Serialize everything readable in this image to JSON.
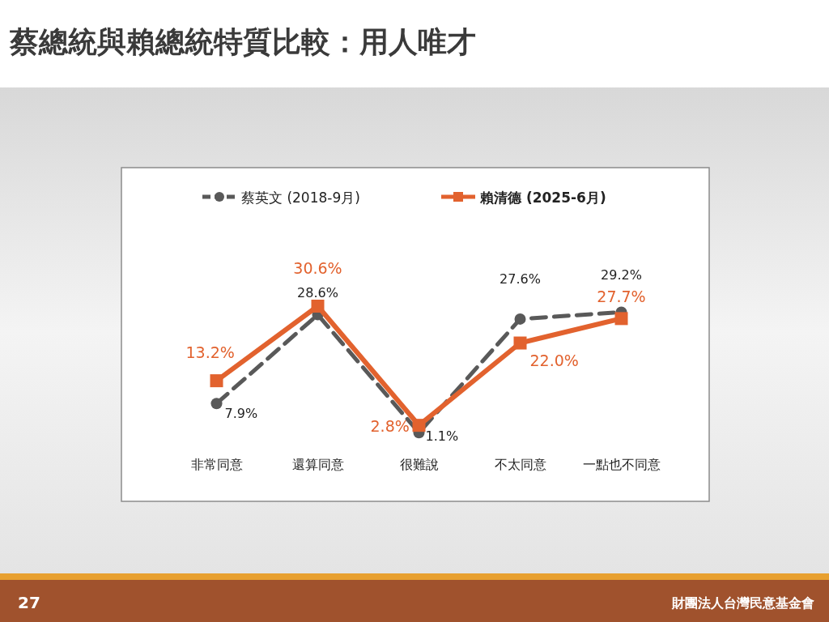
{
  "chart_data": {
    "type": "line",
    "title": "蔡總統與賴總統特質比較：用人唯才",
    "categories": [
      "非常同意",
      "還算同意",
      "很難說",
      "不太同意",
      "一點也不同意"
    ],
    "series": [
      {
        "name": "蔡英文 (2018-9月)",
        "color": "#595959",
        "values": [
          7.9,
          28.6,
          1.1,
          27.6,
          29.2
        ],
        "value_labels": [
          "7.9%",
          "28.6%",
          "1.1%",
          "27.6%",
          "29.2%"
        ],
        "marker": "circle",
        "line_style": "dashed"
      },
      {
        "name": "賴清德 (2025-6月)",
        "color": "#e2622e",
        "values": [
          13.2,
          30.6,
          2.8,
          22.0,
          27.7
        ],
        "value_labels": [
          "13.2%",
          "30.6%",
          "2.8%",
          "22.0%",
          "27.7%"
        ],
        "marker": "square",
        "line_style": "solid"
      }
    ],
    "tick_labels": "x",
    "legend": "top",
    "annotations": [
      "27",
      "財團法人台灣民意基金會"
    ]
  }
}
